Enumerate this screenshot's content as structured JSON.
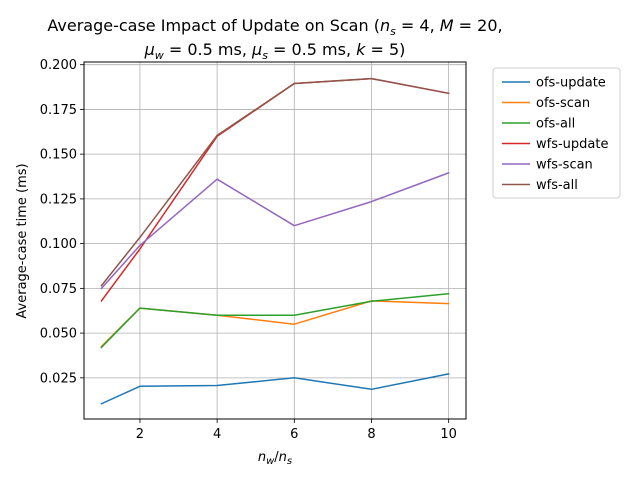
{
  "chart_data": {
    "type": "line",
    "title_line1": "Average-case Impact of Update on Scan (n_s = 4, M = 20,",
    "title_line2": "μ_w = 0.5 ms, μ_s = 0.5 ms, k = 5)",
    "xlabel": "n_w/n_s",
    "ylabel": "Average-case time (ms)",
    "x": [
      1,
      2,
      4,
      6,
      8,
      10
    ],
    "xlim": [
      0.55,
      10.45
    ],
    "ylim": [
      0.002,
      0.2015
    ],
    "xticks": [
      2,
      4,
      6,
      8,
      10
    ],
    "xtick_labels": [
      "2",
      "4",
      "6",
      "8",
      "10"
    ],
    "yticks": [
      0.025,
      0.05,
      0.075,
      0.1,
      0.125,
      0.15,
      0.175,
      0.2
    ],
    "ytick_labels": [
      "0.025",
      "0.050",
      "0.075",
      "0.100",
      "0.125",
      "0.150",
      "0.175",
      "0.200"
    ],
    "grid": true,
    "legend_position": "outside-right",
    "series": [
      {
        "name": "ofs-update",
        "color": "#1f77b4",
        "values": [
          0.0105,
          0.0203,
          0.0207,
          0.025,
          0.0186,
          0.0272
        ]
      },
      {
        "name": "ofs-scan",
        "color": "#ff7f0e",
        "values": [
          0.0425,
          0.064,
          0.06,
          0.055,
          0.068,
          0.0665
        ]
      },
      {
        "name": "ofs-all",
        "color": "#2ca02c",
        "values": [
          0.042,
          0.064,
          0.06,
          0.06,
          0.0678,
          0.072
        ]
      },
      {
        "name": "wfs-update",
        "color": "#d62728",
        "values": [
          0.068,
          0.097,
          0.16,
          0.1895,
          0.1922,
          0.184
        ]
      },
      {
        "name": "wfs-scan",
        "color": "#9467bd",
        "values": [
          0.075,
          0.099,
          0.136,
          0.11,
          0.1235,
          0.1395
        ]
      },
      {
        "name": "wfs-all",
        "color": "#8c564b",
        "values": [
          0.0765,
          0.1035,
          0.1605,
          0.1895,
          0.1922,
          0.184
        ]
      }
    ]
  }
}
